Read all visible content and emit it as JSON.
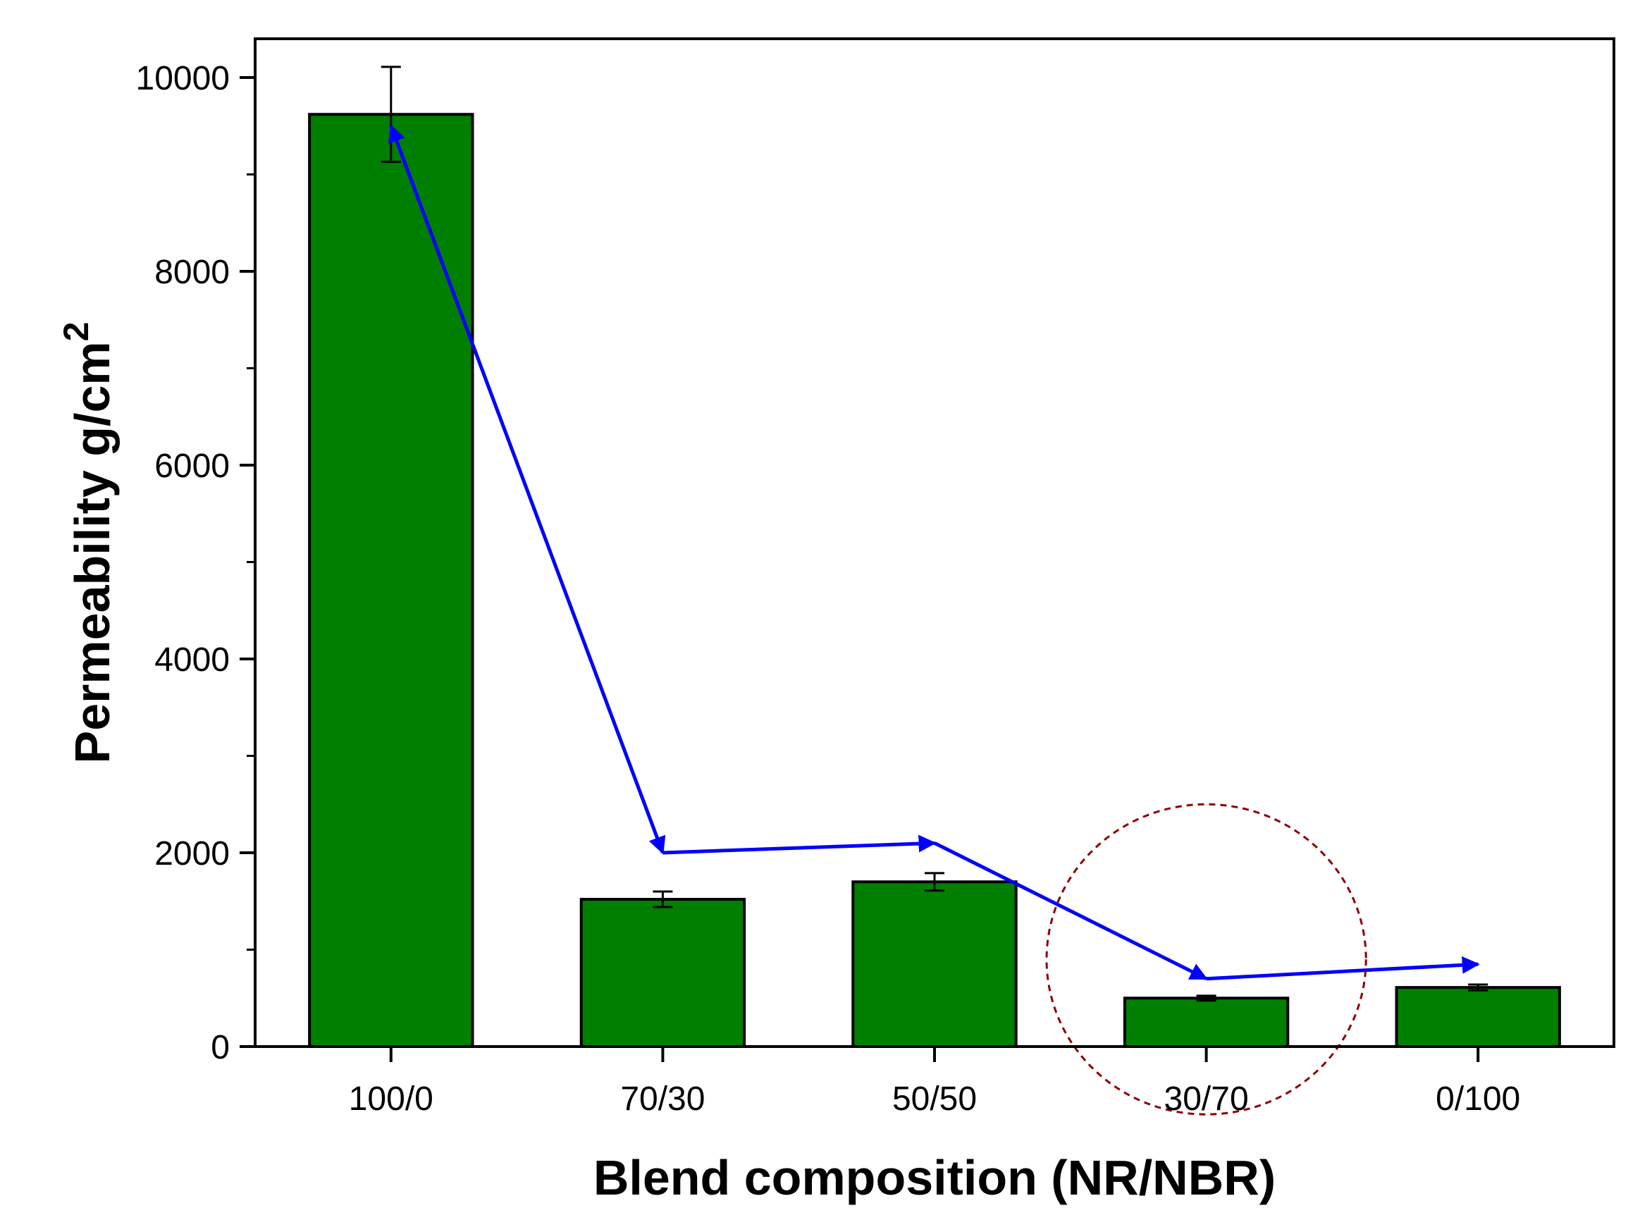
{
  "chart_data": {
    "type": "bar",
    "title": "",
    "xlabel": "Blend composition (NR/NBR)",
    "ylabel": "Permeability g/cm",
    "ylabel_superscript": "2",
    "categories": [
      "100/0",
      "70/30",
      "50/50",
      "30/70",
      "0/100"
    ],
    "values": [
      9620,
      1520,
      1700,
      500,
      610
    ],
    "errors": [
      490,
      80,
      90,
      25,
      30
    ],
    "ylim": [
      0,
      10400
    ],
    "yticks": [
      0,
      2000,
      4000,
      6000,
      8000,
      10000
    ],
    "grid": false,
    "trend_arrow": [
      {
        "category": "100/0",
        "value": 9500
      },
      {
        "category": "70/30",
        "value": 2000
      },
      {
        "category": "50/50",
        "value": 2100
      },
      {
        "category": "30/70",
        "value": 700
      },
      {
        "category": "0/100",
        "value": 850
      }
    ],
    "highlight_circle": {
      "category": "30/70",
      "center_value": 900,
      "radius_value": 1600
    },
    "colors": {
      "bar_fill": "#007f00",
      "bar_stroke": "#000000",
      "trend": "#0000ff",
      "highlight": "#8b0000"
    }
  }
}
